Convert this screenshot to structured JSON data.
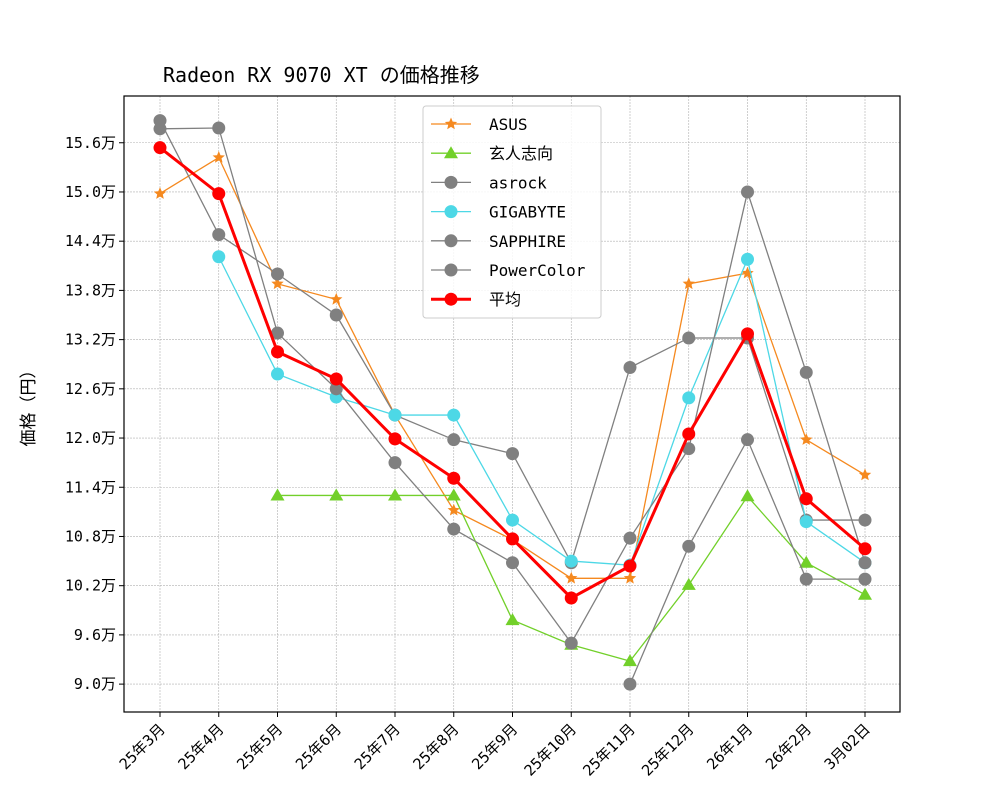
{
  "chart_data": {
    "type": "line",
    "title": "Radeon RX 9070 XT の価格推移",
    "xlabel": "",
    "ylabel": "価格（円）",
    "ylim": [
      86600,
      161700
    ],
    "yticks": [
      90000,
      96000,
      102000,
      108000,
      114000,
      120000,
      126000,
      132000,
      138000,
      144000,
      150000,
      156000
    ],
    "ytick_labels": [
      "9.0万",
      "9.6万",
      "10.2万",
      "10.8万",
      "11.4万",
      "12.0万",
      "12.6万",
      "13.2万",
      "13.8万",
      "14.4万",
      "15.0万",
      "15.6万"
    ],
    "categories": [
      "25年3月",
      "25年4月",
      "25年5月",
      "25年6月",
      "25年7月",
      "25年8月",
      "25年9月",
      "25年10月",
      "25年11月",
      "25年12月",
      "26年1月",
      "26年2月",
      "3月02日"
    ],
    "grid": true,
    "legend_position": "upper-center",
    "series": [
      {
        "name": "ASUS",
        "color": "#f5891f",
        "marker": "star",
        "width": 1.3,
        "values": [
          149800,
          154200,
          138800,
          136900,
          122800,
          111200,
          107600,
          102900,
          102900,
          138800,
          140100,
          119800,
          115500
        ]
      },
      {
        "name": "玄人志向",
        "color": "#72d02a",
        "marker": "triangle",
        "width": 1.3,
        "values": [
          null,
          null,
          113000,
          113000,
          113000,
          113000,
          97800,
          94800,
          92800,
          102100,
          112900,
          104800,
          100900
        ]
      },
      {
        "name": "asrock",
        "color": "#808080",
        "marker": "circle",
        "width": 1.3,
        "values": [
          158700,
          144800,
          140000,
          135000,
          122800,
          119800,
          118100,
          104800,
          128600,
          132200,
          132200,
          110000,
          110000
        ]
      },
      {
        "name": "GIGABYTE",
        "color": "#4dd8e6",
        "marker": "circle",
        "width": 1.3,
        "values": [
          null,
          142100,
          127800,
          125000,
          122800,
          122800,
          110000,
          105000,
          104500,
          124900,
          141800,
          109800,
          104800
        ]
      },
      {
        "name": "SAPPHIRE",
        "color": "#808080",
        "marker": "circle",
        "width": 1.3,
        "values": [
          157700,
          157800,
          132800,
          126000,
          117000,
          108900,
          104800,
          95000,
          107800,
          118700,
          150000,
          128000,
          104800
        ]
      },
      {
        "name": "PowerColor",
        "color": "#808080",
        "marker": "circle",
        "width": 1.3,
        "values": [
          null,
          null,
          null,
          null,
          null,
          null,
          null,
          null,
          90000,
          106800,
          119800,
          102800,
          102800
        ]
      },
      {
        "name": "平均",
        "color": "#ff0000",
        "marker": "circle",
        "width": 3,
        "values": [
          155400,
          149800,
          130500,
          127200,
          119900,
          115100,
          107700,
          100500,
          104400,
          120500,
          132700,
          112600,
          106500
        ]
      }
    ]
  }
}
